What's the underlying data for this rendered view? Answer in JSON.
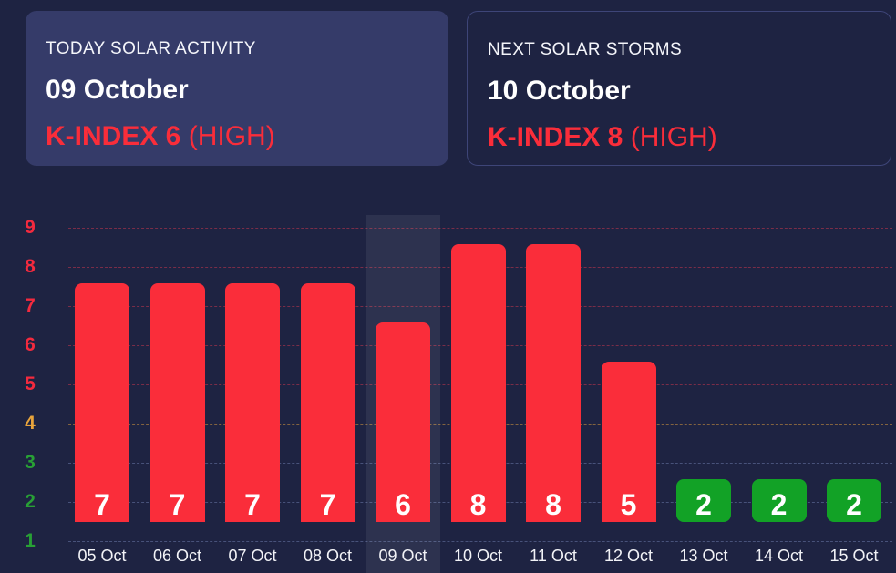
{
  "cards": {
    "today": {
      "title": "TODAY SOLAR ACTIVITY",
      "date": "09 October",
      "k_index": "K-INDEX 6",
      "level": "(HIGH)"
    },
    "next": {
      "title": "NEXT SOLAR STORMS",
      "date": "10 October",
      "k_index": "K-INDEX 8",
      "level": "(HIGH)"
    }
  },
  "colors": {
    "background": "#1e2342",
    "card_fill": "#353b69",
    "card_border": "#3e4578",
    "red": "#fa2d3a",
    "orange": "#e8a43c",
    "green_bar": "#12a226",
    "green_label": "#28a035",
    "white": "#ffffff",
    "highlight_band": "rgba(255,255,255,0.07)"
  },
  "chart_data": {
    "type": "bar",
    "title": "",
    "xlabel": "",
    "ylabel": "",
    "categories": [
      "05 Oct",
      "06 Oct",
      "07 Oct",
      "08 Oct",
      "09 Oct",
      "10 Oct",
      "11 Oct",
      "12 Oct",
      "13 Oct",
      "14 Oct",
      "15 Oct"
    ],
    "values": [
      7,
      7,
      7,
      7,
      6,
      8,
      8,
      5,
      2,
      2,
      2
    ],
    "bar_value_labels": [
      "7",
      "7",
      "7",
      "7",
      "6",
      "8",
      "8",
      "5",
      "2",
      "2",
      "2"
    ],
    "bar_colors": [
      "#fa2d3a",
      "#fa2d3a",
      "#fa2d3a",
      "#fa2d3a",
      "#fa2d3a",
      "#fa2d3a",
      "#fa2d3a",
      "#fa2d3a",
      "#12a226",
      "#12a226",
      "#12a226"
    ],
    "highlighted_category": "09 Oct",
    "ylim": [
      1,
      9
    ],
    "grid": "horizontal-dashed",
    "legend": "none",
    "y_ticks": [
      {
        "value": 9,
        "label_color": "#f42a3e",
        "grid_color": "rgba(250,60,80,0.42)"
      },
      {
        "value": 8,
        "label_color": "#f42a3e",
        "grid_color": "rgba(250,60,80,0.42)"
      },
      {
        "value": 7,
        "label_color": "#f42a3e",
        "grid_color": "rgba(250,60,80,0.42)"
      },
      {
        "value": 6,
        "label_color": "#f42a3e",
        "grid_color": "rgba(250,60,80,0.42)"
      },
      {
        "value": 5,
        "label_color": "#f42a3e",
        "grid_color": "rgba(250,60,80,0.42)"
      },
      {
        "value": 4,
        "label_color": "#e8a43c",
        "grid_color": "rgba(232,164,60,0.50)"
      },
      {
        "value": 3,
        "label_color": "#28a035",
        "grid_color": "rgba(125,140,190,0.45)"
      },
      {
        "value": 2,
        "label_color": "#28a035",
        "grid_color": "rgba(125,140,190,0.45)"
      },
      {
        "value": 1,
        "label_color": "#28a035",
        "grid_color": "rgba(125,140,190,0.45)"
      }
    ]
  }
}
